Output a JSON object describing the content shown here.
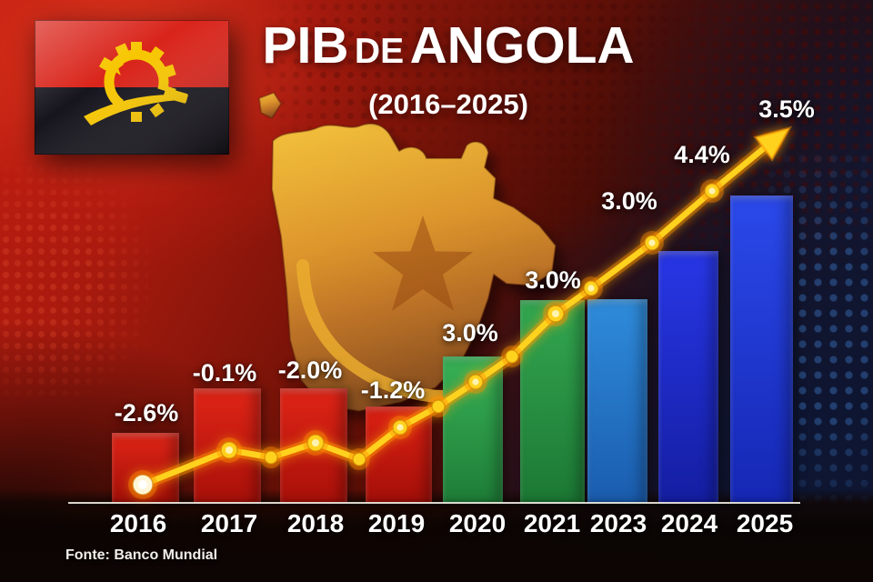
{
  "header": {
    "title_word1": "PIB",
    "title_word2": "DE",
    "title_word3": "ANGOLA",
    "subtitle": "(2016–2025)"
  },
  "flag": {
    "label": "Bandeira de Angola",
    "red": "#d9241a",
    "black": "#16141c",
    "yellow": "#f7c600"
  },
  "footer": {
    "source": "Fonte: Banco Mundial"
  },
  "background": {
    "red": "#b81c10",
    "dark_maroon": "#3a0c06",
    "navy": "#101a36",
    "map_gold": "#eab437"
  },
  "chart_data": {
    "type": "bar",
    "overlay": "line",
    "title": "PIB de Angola (2016–2025)",
    "categories": [
      "2016",
      "2017",
      "2018",
      "2019",
      "2020",
      "2021",
      "2023",
      "2024",
      "2025"
    ],
    "values": [
      -2.6,
      -0.1,
      -2.0,
      -1.2,
      3.0,
      3.0,
      3.0,
      4.4,
      3.5
    ],
    "labels": [
      "-2.6%",
      "-0.1%",
      "-2.0%",
      "-1.2%",
      "3.0%",
      "3.0%",
      "3.0%",
      "4.4%",
      "3.5%"
    ],
    "unit": "%",
    "bar_colors_top": [
      "#e02517",
      "#e02517",
      "#e02517",
      "#dd2114",
      "#38b156",
      "#33a750",
      "#2f8cdb",
      "#2837e6",
      "#2b49ea"
    ],
    "bar_colors_bottom": [
      "#a21008",
      "#a81009",
      "#a81009",
      "#a30f08",
      "#1e7d37",
      "#1c7834",
      "#1a5cae",
      "#141ea2",
      "#1527b4"
    ],
    "line_color": "#ffd21e",
    "line_glow": "#ff9900",
    "first_point_color": "#fff6d8",
    "axis_line_color": "#e8e4da",
    "legend": "none",
    "gridlines": false,
    "source": "Fonte: Banco Mundial"
  }
}
